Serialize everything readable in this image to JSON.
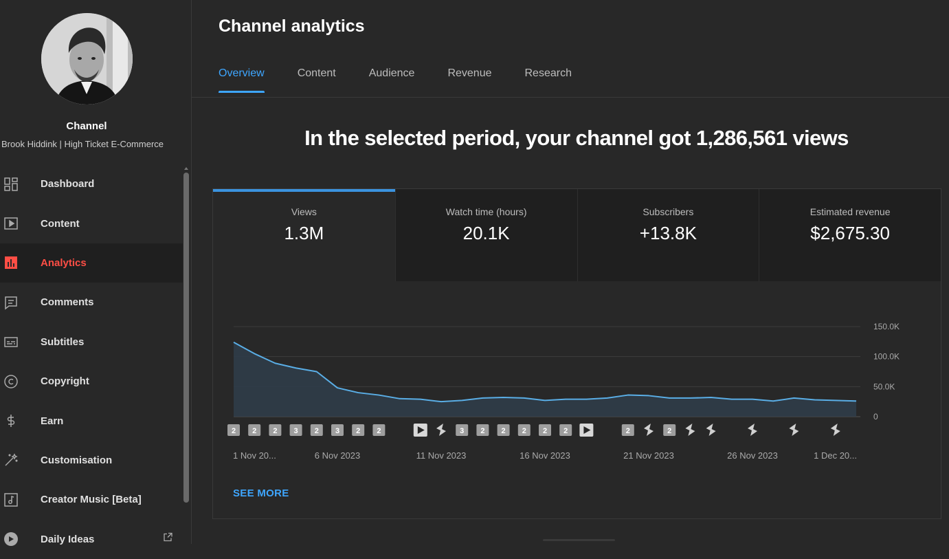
{
  "sidebar": {
    "channel_title": "Channel",
    "channel_name": "Brook Hiddink | High Ticket E-Commerce",
    "items": [
      {
        "label": "Dashboard",
        "icon": "dashboard-icon",
        "active": false
      },
      {
        "label": "Content",
        "icon": "content-icon",
        "active": false
      },
      {
        "label": "Analytics",
        "icon": "analytics-icon",
        "active": true
      },
      {
        "label": "Comments",
        "icon": "comments-icon",
        "active": false
      },
      {
        "label": "Subtitles",
        "icon": "subtitles-icon",
        "active": false
      },
      {
        "label": "Copyright",
        "icon": "copyright-icon",
        "active": false
      },
      {
        "label": "Earn",
        "icon": "earn-icon",
        "active": false
      },
      {
        "label": "Customisation",
        "icon": "customisation-icon",
        "active": false
      },
      {
        "label": "Creator Music [Beta]",
        "icon": "creator-music-icon",
        "active": false
      },
      {
        "label": "Daily Ideas",
        "icon": "daily-ideas-icon",
        "active": false
      }
    ]
  },
  "main": {
    "title": "Channel analytics",
    "tabs": [
      {
        "label": "Overview",
        "active": true
      },
      {
        "label": "Content",
        "active": false
      },
      {
        "label": "Audience",
        "active": false
      },
      {
        "label": "Revenue",
        "active": false
      },
      {
        "label": "Research",
        "active": false
      }
    ],
    "headline": "In the selected period, your channel got 1,286,561 views",
    "metrics": [
      {
        "label": "Views",
        "value": "1.3M"
      },
      {
        "label": "Watch time (hours)",
        "value": "20.1K"
      },
      {
        "label": "Subscribers",
        "value": "+13.8K"
      },
      {
        "label": "Estimated revenue",
        "value": "$2,675.30"
      }
    ],
    "see_more": "SEE MORE"
  },
  "colors": {
    "accent": "#3ea6ff",
    "active_nav": "#ff4e45",
    "background": "#282828",
    "line": "#5aaee6"
  },
  "chart_data": {
    "type": "area",
    "title": "Views",
    "y_ticks": [
      "150.0K",
      "100.0K",
      "50.0K",
      "0"
    ],
    "ylim": [
      0,
      150000
    ],
    "x_labels": [
      "1 Nov 20...",
      "6 Nov 2023",
      "11 Nov 2023",
      "16 Nov 2023",
      "21 Nov 2023",
      "26 Nov 2023",
      "1 Dec 20..."
    ],
    "x_label_days": [
      0,
      5,
      10,
      15,
      20,
      25,
      30
    ],
    "series": [
      {
        "name": "Views",
        "values": [
          124000,
          105000,
          89000,
          81000,
          75000,
          48000,
          40000,
          36000,
          30000,
          29000,
          25000,
          27000,
          31000,
          32000,
          31000,
          27000,
          29000,
          29000,
          31000,
          36000,
          35000,
          31000,
          31000,
          32000,
          29000,
          29000,
          26000,
          31000,
          28000,
          27000,
          26000
        ]
      }
    ],
    "markers": [
      {
        "day": 0,
        "type": "count",
        "label": "2"
      },
      {
        "day": 1,
        "type": "count",
        "label": "2"
      },
      {
        "day": 2,
        "type": "count",
        "label": "2"
      },
      {
        "day": 3,
        "type": "count",
        "label": "3"
      },
      {
        "day": 4,
        "type": "count",
        "label": "2"
      },
      {
        "day": 5,
        "type": "count",
        "label": "3"
      },
      {
        "day": 6,
        "type": "count",
        "label": "2"
      },
      {
        "day": 7,
        "type": "count",
        "label": "2"
      },
      {
        "day": 9,
        "type": "video",
        "label": ""
      },
      {
        "day": 10,
        "type": "short",
        "label": ""
      },
      {
        "day": 11,
        "type": "count",
        "label": "3"
      },
      {
        "day": 12,
        "type": "count",
        "label": "2"
      },
      {
        "day": 13,
        "type": "count",
        "label": "2"
      },
      {
        "day": 14,
        "type": "count",
        "label": "2"
      },
      {
        "day": 15,
        "type": "count",
        "label": "2"
      },
      {
        "day": 16,
        "type": "count",
        "label": "2"
      },
      {
        "day": 17,
        "type": "video",
        "label": ""
      },
      {
        "day": 19,
        "type": "count",
        "label": "2"
      },
      {
        "day": 20,
        "type": "short",
        "label": ""
      },
      {
        "day": 21,
        "type": "count",
        "label": "2"
      },
      {
        "day": 22,
        "type": "short",
        "label": ""
      },
      {
        "day": 23,
        "type": "short",
        "label": ""
      },
      {
        "day": 25,
        "type": "short",
        "label": ""
      },
      {
        "day": 27,
        "type": "short",
        "label": ""
      },
      {
        "day": 29,
        "type": "short",
        "label": ""
      }
    ]
  }
}
